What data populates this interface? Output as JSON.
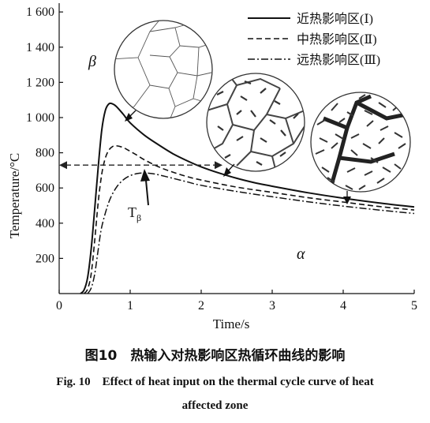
{
  "chart_data": {
    "type": "line",
    "xlabel": "Time/s",
    "ylabel": "Temperature/°C",
    "xlim": [
      0,
      5
    ],
    "ylim": [
      0,
      1650
    ],
    "x_ticks": [
      "0",
      "1",
      "2",
      "3",
      "4",
      "5"
    ],
    "y_ticks": [
      "200",
      "400",
      "600",
      "800",
      "1 000",
      "1 200",
      "1 400",
      "1 600"
    ],
    "grid": false,
    "legend_position": "top-right",
    "series": [
      {
        "name": "近热影响区(Ⅰ)",
        "style": "solid",
        "x": [
          0.3,
          0.35,
          0.4,
          0.45,
          0.5,
          0.55,
          0.6,
          0.65,
          0.7,
          0.75,
          0.8,
          0.9,
          1.0,
          1.2,
          1.4,
          1.6,
          1.8,
          2.0,
          2.25,
          2.5,
          2.75,
          3.0,
          3.5,
          4.0,
          4.5,
          5.0
        ],
        "y": [
          0,
          20,
          90,
          250,
          480,
          720,
          930,
          1040,
          1078,
          1078,
          1065,
          1020,
          970,
          900,
          845,
          795,
          755,
          720,
          685,
          655,
          630,
          610,
          573,
          542,
          515,
          492
        ]
      },
      {
        "name": "中热影响区(Ⅱ)",
        "style": "dashed",
        "x": [
          0.35,
          0.4,
          0.45,
          0.5,
          0.55,
          0.6,
          0.65,
          0.7,
          0.75,
          0.8,
          0.9,
          1.0,
          1.1,
          1.2,
          1.4,
          1.6,
          1.8,
          2.0,
          2.5,
          3.0,
          3.5,
          4.0,
          4.5,
          5.0
        ],
        "y": [
          0,
          25,
          110,
          300,
          520,
          680,
          770,
          815,
          835,
          840,
          830,
          808,
          785,
          760,
          720,
          690,
          665,
          645,
          605,
          575,
          545,
          520,
          495,
          475
        ]
      },
      {
        "name": "远热影响区(Ⅲ)",
        "style": "dash-dot",
        "x": [
          0.4,
          0.45,
          0.5,
          0.55,
          0.6,
          0.7,
          0.8,
          0.9,
          1.0,
          1.1,
          1.2,
          1.3,
          1.4,
          1.6,
          1.8,
          2.0,
          2.5,
          3.0,
          3.5,
          4.0,
          4.5,
          5.0
        ],
        "y": [
          0,
          30,
          110,
          250,
          380,
          520,
          600,
          645,
          670,
          682,
          685,
          682,
          675,
          655,
          635,
          615,
          580,
          550,
          522,
          497,
          475,
          455
        ]
      }
    ],
    "reference_line": {
      "y": 730,
      "x_from": 0,
      "x_to": 2.3,
      "style": "dashed-arrow"
    },
    "annotations": {
      "beta": "β",
      "alpha": "α",
      "t_beta": "T",
      "t_beta_sub": "β"
    },
    "insets": [
      {
        "name": "grain-structure-I",
        "near_series": "近热影响区(Ⅰ)"
      },
      {
        "name": "grain-structure-II",
        "near_series": "中热影响区(Ⅱ)"
      },
      {
        "name": "grain-structure-III",
        "near_series": "远热影响区(Ⅲ)"
      }
    ]
  },
  "caption": {
    "cn": "图10　热输入对热影响区热循环曲线的影响",
    "en_line1": "Fig. 10　Effect of heat input on the thermal cycle curve of heat",
    "en_line2": "affected zone"
  }
}
